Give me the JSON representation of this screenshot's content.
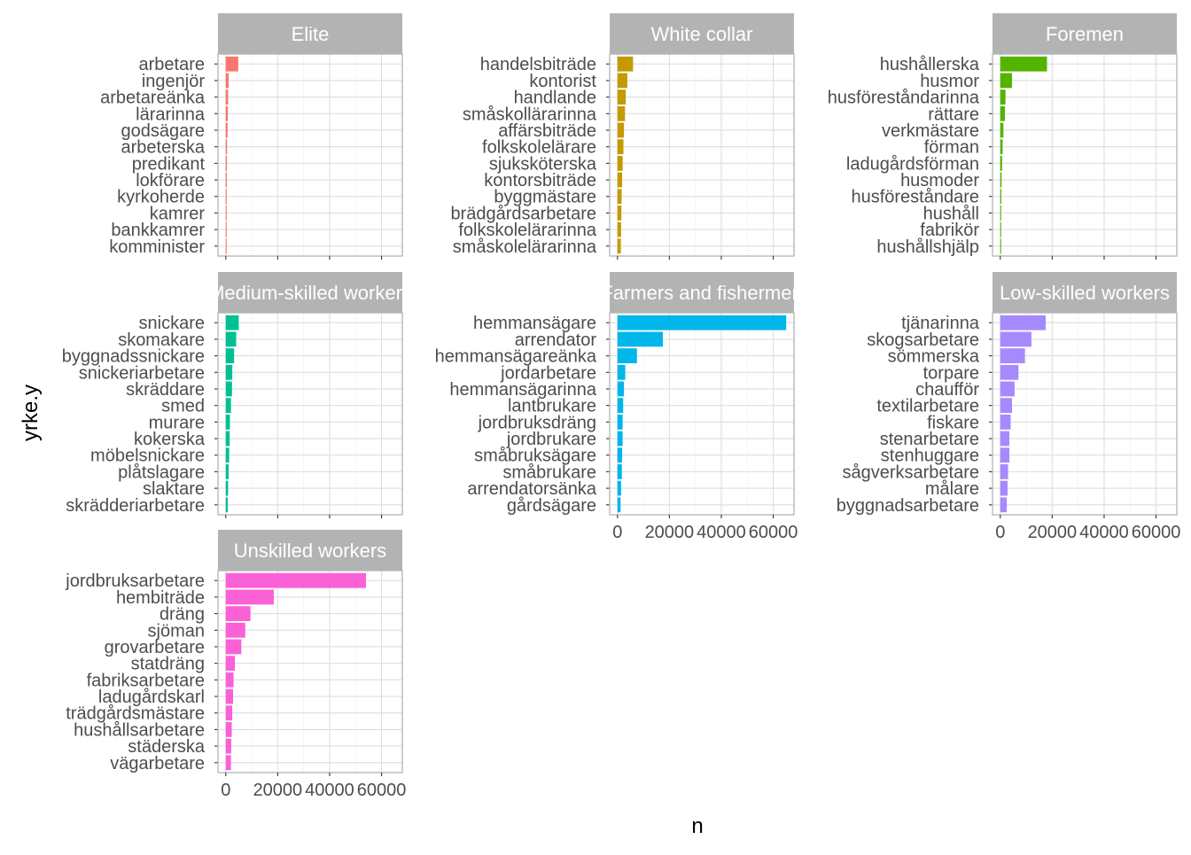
{
  "chart_data": {
    "type": "bar",
    "orientation": "horizontal",
    "xlabel": "n",
    "ylabel": "yrke.y",
    "xlim": [
      -3000,
      68000
    ],
    "xticks": [
      0,
      20000,
      40000,
      60000
    ],
    "xtick_labels": [
      "0",
      "20000",
      "40000",
      "60000"
    ],
    "grid": true,
    "facet_strip_color": "#b3b3b3",
    "panels": [
      {
        "title": "Elite",
        "color": "#F8766D",
        "categories": [
          "arbetare",
          "ingenjör",
          "arbetareänka",
          "lärarinna",
          "godsägare",
          "arbeterska",
          "predikant",
          "lokförare",
          "kyrkoherde",
          "kamrer",
          "bankkamrer",
          "komminister"
        ],
        "values": [
          4800,
          1100,
          900,
          800,
          700,
          500,
          450,
          400,
          350,
          300,
          280,
          250
        ]
      },
      {
        "title": "White collar",
        "color": "#C49A00",
        "categories": [
          "handelsbiträde",
          "kontorist",
          "handlande",
          "småskollärarinna",
          "affärsbiträde",
          "folkskolelärare",
          "sjuksköterska",
          "kontorsbiträde",
          "byggmästare",
          "brädgårdsarbetare",
          "folkskolelärarinna",
          "småskolelärarinna"
        ],
        "values": [
          6000,
          3800,
          3200,
          2900,
          2500,
          2300,
          2000,
          1800,
          1600,
          1500,
          1400,
          1300
        ]
      },
      {
        "title": "Foremen",
        "color": "#53B400",
        "categories": [
          "hushållerska",
          "husmor",
          "husföreståndarinna",
          "rättare",
          "verkmästare",
          "förman",
          "ladugårdsförman",
          "husmoder",
          "husföreståndare",
          "hushåll",
          "fabrikör",
          "hushållshjälp"
        ],
        "values": [
          18000,
          4500,
          2000,
          1800,
          1200,
          900,
          700,
          500,
          400,
          350,
          300,
          250
        ]
      },
      {
        "title": "Medium-skilled workers",
        "color": "#00C094",
        "categories": [
          "snickare",
          "skomakare",
          "byggnadssnickare",
          "snickeriarbetare",
          "skräddare",
          "smed",
          "murare",
          "kokerska",
          "möbelsnickare",
          "plåtslagare",
          "slaktare",
          "skrädderiarbetare"
        ],
        "values": [
          5000,
          4000,
          3200,
          2500,
          2400,
          2000,
          1600,
          1500,
          1300,
          1100,
          900,
          800
        ]
      },
      {
        "title": "Farmers and fishermen",
        "color": "#00B6EB",
        "categories": [
          "hemmansägare",
          "arrendator",
          "hemmansägareänka",
          "jordarbetare",
          "hemmansägarinna",
          "lantbrukare",
          "jordbruksdräng",
          "jordbrukare",
          "småbruksägare",
          "småbrukare",
          "arrendatorsänka",
          "gårdsägare"
        ],
        "values": [
          65000,
          17500,
          7500,
          3000,
          2500,
          2200,
          2000,
          2000,
          1800,
          1700,
          1400,
          1200
        ]
      },
      {
        "title": "Low-skilled workers",
        "color": "#A58AFF",
        "categories": [
          "tjänarinna",
          "skogsarbetare",
          "sömmerska",
          "torpare",
          "chaufför",
          "textilarbetare",
          "fiskare",
          "stenarbetare",
          "stenhuggare",
          "sågverksarbetare",
          "målare",
          "byggnadsarbetare"
        ],
        "values": [
          17500,
          12000,
          9500,
          7000,
          5500,
          4500,
          4000,
          3500,
          3500,
          3000,
          2800,
          2500
        ]
      },
      {
        "title": "Unskilled workers",
        "color": "#FB61D7",
        "categories": [
          "jordbruksarbetare",
          "hembiträde",
          "dräng",
          "sjöman",
          "grovarbetare",
          "statdräng",
          "fabriksarbetare",
          "ladugårdskarl",
          "trädgårdsmästare",
          "hushållsarbetare",
          "städerska",
          "vägarbetare"
        ],
        "values": [
          54000,
          18500,
          9500,
          7500,
          6000,
          3500,
          3000,
          2800,
          2500,
          2300,
          2100,
          2000
        ]
      }
    ]
  }
}
